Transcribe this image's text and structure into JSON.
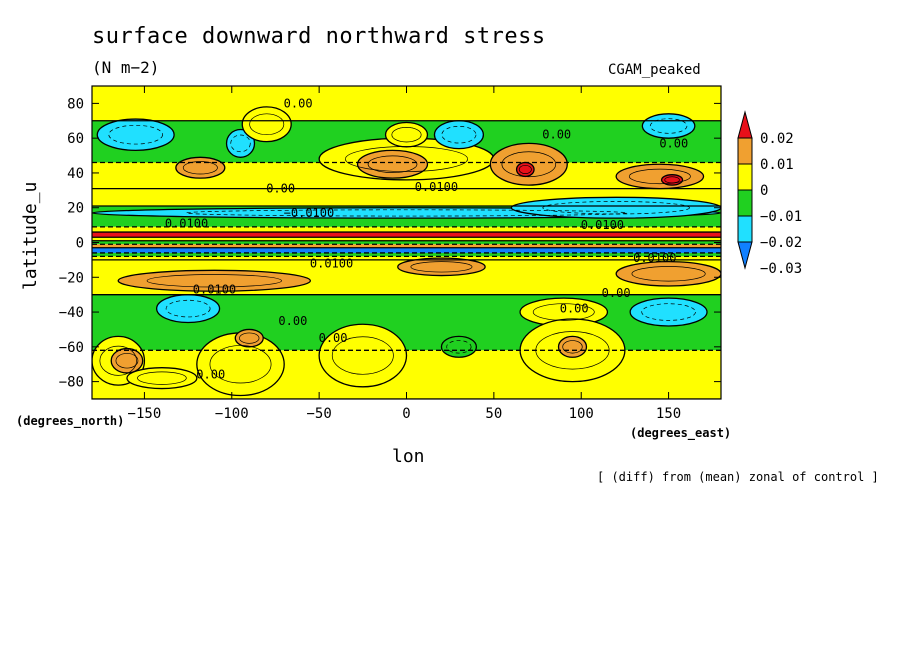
{
  "chart_data": {
    "type": "heatmap",
    "title": "surface downward northward stress",
    "units": "(N m−2)",
    "dataset": "CGAM_peaked",
    "xlabel": "lon",
    "ylabel": "latitude_u",
    "x_units": "(degrees_east)",
    "y_units": "(degrees_north)",
    "footnote": "[ (diff) from (mean) zonal of control ]",
    "xlim": [
      -180,
      180
    ],
    "ylim": [
      -90,
      90
    ],
    "x_ticks": [
      -150,
      -100,
      -50,
      0,
      50,
      100,
      150
    ],
    "x_tick_labels": [
      "−150",
      "−100",
      "−50",
      "0",
      "50",
      "100",
      "150"
    ],
    "y_ticks": [
      80,
      60,
      40,
      20,
      0,
      -20,
      -40,
      -60,
      -80
    ],
    "y_tick_labels": [
      "80",
      "60",
      "40",
      "20",
      "0",
      "−20",
      "−40",
      "−60",
      "−80"
    ],
    "levels": [
      -0.03,
      -0.02,
      -0.01,
      0,
      0.01,
      0.02
    ],
    "colorbar_labels": [
      "0.02",
      "0.01",
      "0",
      "−0.01",
      "−0.02",
      "−0.03"
    ],
    "colors": {
      "gt_0.02": "#e8101a",
      "0.01_to_0.02": "#f0a030",
      "0_to_0.01": "#ffff00",
      "-0.01_to_0": "#20d020",
      "-0.02_to_-0.01": "#20e0ff",
      "lt_-0.02": "#1080ff"
    },
    "contour_labels": [
      "0.00",
      "0.0100",
      "−0.0100"
    ],
    "bands": [
      {
        "lat": [
          70,
          90
        ],
        "value": 0.004
      },
      {
        "lat": [
          46,
          70
        ],
        "value": -0.004
      },
      {
        "lat": [
          31,
          46
        ],
        "value": 0.004
      },
      {
        "lat": [
          21,
          31
        ],
        "value": 0.006
      },
      {
        "lat": [
          9,
          21
        ],
        "value": -0.006
      },
      {
        "lat": [
          6,
          9
        ],
        "value": 0.004
      },
      {
        "lat": [
          3,
          6
        ],
        "value": 0.03
      },
      {
        "lat": [
          1,
          3
        ],
        "value": 0.005
      },
      {
        "lat": [
          -1,
          1
        ],
        "value": -0.005
      },
      {
        "lat": [
          -3,
          -1
        ],
        "value": 0.015
      },
      {
        "lat": [
          -6,
          -3
        ],
        "value": -0.03
      },
      {
        "lat": [
          -8,
          -6
        ],
        "value": -0.005
      },
      {
        "lat": [
          -10,
          -8
        ],
        "value": 0.004
      },
      {
        "lat": [
          -30,
          -10
        ],
        "value": 0.006
      },
      {
        "lat": [
          -62,
          -30
        ],
        "value": -0.004
      },
      {
        "lat": [
          -90,
          -62
        ],
        "value": 0.004
      }
    ],
    "blobs": [
      {
        "lon": -155,
        "lat": 62,
        "rlon": 22,
        "rlat": 9,
        "value": -0.012
      },
      {
        "lon": -118,
        "lat": 43,
        "rlon": 14,
        "rlat": 6,
        "value": 0.013
      },
      {
        "lon": -95,
        "lat": 57,
        "rlon": 8,
        "rlat": 8,
        "value": -0.012
      },
      {
        "lon": -80,
        "lat": 68,
        "rlon": 14,
        "rlat": 10,
        "value": 0.004
      },
      {
        "lon": 0,
        "lat": 48,
        "rlon": 50,
        "rlat": 12,
        "value": 0.004
      },
      {
        "lon": -8,
        "lat": 45,
        "rlon": 20,
        "rlat": 8,
        "value": 0.013
      },
      {
        "lon": 30,
        "lat": 62,
        "rlon": 14,
        "rlat": 8,
        "value": -0.012
      },
      {
        "lon": 0,
        "lat": 62,
        "rlon": 12,
        "rlat": 7,
        "value": 0.004
      },
      {
        "lon": 70,
        "lat": 45,
        "rlon": 22,
        "rlat": 12,
        "value": 0.013
      },
      {
        "lon": 68,
        "lat": 42,
        "rlon": 5,
        "rlat": 4,
        "value": 0.025
      },
      {
        "lon": 145,
        "lat": 38,
        "rlon": 25,
        "rlat": 7,
        "value": 0.013
      },
      {
        "lon": 152,
        "lat": 36,
        "rlon": 6,
        "rlat": 3,
        "value": 0.025
      },
      {
        "lon": 150,
        "lat": 67,
        "rlon": 15,
        "rlat": 7,
        "value": -0.012
      },
      {
        "lon": 0,
        "lat": 17,
        "rlon": 180,
        "rlat": 3,
        "value": -0.012
      },
      {
        "lon": 120,
        "lat": 20,
        "rlon": 60,
        "rlat": 6,
        "value": -0.012
      },
      {
        "lon": -110,
        "lat": -22,
        "rlon": 55,
        "rlat": 6,
        "value": 0.013
      },
      {
        "lon": 20,
        "lat": -14,
        "rlon": 25,
        "rlat": 5,
        "value": 0.013
      },
      {
        "lon": 150,
        "lat": -18,
        "rlon": 30,
        "rlat": 7,
        "value": 0.013
      },
      {
        "lon": -125,
        "lat": -38,
        "rlon": 18,
        "rlat": 8,
        "value": -0.012
      },
      {
        "lon": 150,
        "lat": -40,
        "rlon": 22,
        "rlat": 8,
        "value": -0.012
      },
      {
        "lon": 90,
        "lat": -40,
        "rlon": 25,
        "rlat": 8,
        "value": 0.004
      },
      {
        "lon": -165,
        "lat": -68,
        "rlon": 15,
        "rlat": 14,
        "value": 0.004
      },
      {
        "lon": -160,
        "lat": -68,
        "rlon": 9,
        "rlat": 7,
        "value": 0.013
      },
      {
        "lon": -95,
        "lat": -70,
        "rlon": 25,
        "rlat": 18,
        "value": 0.004
      },
      {
        "lon": -90,
        "lat": -55,
        "rlon": 8,
        "rlat": 5,
        "value": 0.013
      },
      {
        "lon": -25,
        "lat": -65,
        "rlon": 25,
        "rlat": 18,
        "value": 0.004
      },
      {
        "lon": 95,
        "lat": -62,
        "rlon": 30,
        "rlat": 18,
        "value": 0.004
      },
      {
        "lon": 95,
        "lat": -60,
        "rlon": 8,
        "rlat": 6,
        "value": 0.013
      },
      {
        "lon": -140,
        "lat": -78,
        "rlon": 20,
        "rlat": 6,
        "value": 0.004
      },
      {
        "lon": 30,
        "lat": -60,
        "rlon": 10,
        "rlat": 6,
        "value": -0.004
      }
    ]
  }
}
